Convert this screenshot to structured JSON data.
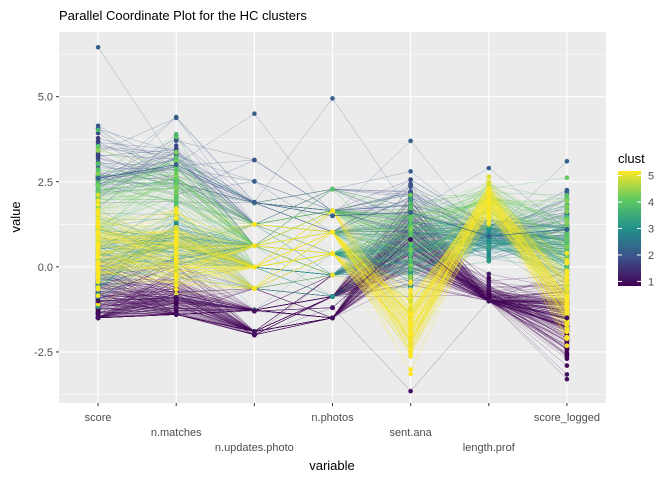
{
  "chart_data": {
    "type": "parallel-coordinates",
    "title": "Parallel Coordinate Plot for the HC clusters",
    "xlabel": "variable",
    "ylabel": "value",
    "categories": [
      "score",
      "n.matches",
      "n.updates.photo",
      "n.photos",
      "sent.ana",
      "length.prof",
      "score_logged"
    ],
    "ylim": [
      -4.0,
      6.9
    ],
    "yticks": [
      -2.5,
      0.0,
      2.5,
      5.0
    ],
    "ytick_labels": [
      "-2.5",
      "0.0",
      "2.5",
      "5.0"
    ],
    "grid": true,
    "legend": {
      "title": "clust",
      "position": "right",
      "ticks": [
        1,
        2,
        3,
        4,
        5
      ],
      "range": [
        1,
        5
      ],
      "colormap": "viridis",
      "colors": [
        "#440154",
        "#3b528b",
        "#21918c",
        "#5ec962",
        "#fde725"
      ]
    },
    "cluster_profiles": [
      {
        "clust": 1,
        "values": [
          -1.0,
          -0.9,
          -1.3,
          -1.2,
          0.8,
          -1.0,
          -1.5
        ]
      },
      {
        "clust": 2,
        "values": [
          2.6,
          3.0,
          1.9,
          1.5,
          1.6,
          0.9,
          1.1
        ]
      },
      {
        "clust": 3,
        "values": [
          0.3,
          0.7,
          0.6,
          0.2,
          0.5,
          0.9,
          0.4
        ]
      },
      {
        "clust": 4,
        "values": [
          2.0,
          2.5,
          1.2,
          1.4,
          0.9,
          2.0,
          0.6
        ]
      },
      {
        "clust": 5,
        "values": [
          0.5,
          0.4,
          0.5,
          0.9,
          -1.6,
          2.0,
          -1.0
        ]
      }
    ],
    "axis_ranges": [
      {
        "variable": "score",
        "min": -1.5,
        "max": 6.45
      },
      {
        "variable": "n.matches",
        "min": -1.4,
        "max": 4.4
      },
      {
        "variable": "n.updates.photo",
        "min": -2.0,
        "max": 4.5
      },
      {
        "variable": "n.photos",
        "min": -1.5,
        "max": 4.95
      },
      {
        "variable": "sent.ana",
        "min": -3.65,
        "max": 3.7
      },
      {
        "variable": "length.prof",
        "min": -1.0,
        "max": 2.9
      },
      {
        "variable": "score_logged",
        "min": -3.3,
        "max": 3.1
      }
    ]
  }
}
